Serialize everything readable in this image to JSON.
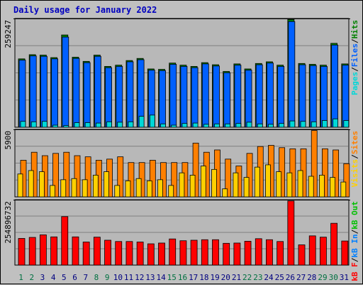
{
  "page": {
    "title": "Daily usage for January 2022"
  },
  "colors": {
    "background": "#c0c0c0",
    "panel": "#b8b8b8",
    "grid": "#808080",
    "pages": "#00d8d8",
    "files": "#0060ff",
    "hits": "#008000",
    "visits": "#ffd000",
    "sites": "#ff8000",
    "kb_in": "#0080ff",
    "kb_out": "#00c000",
    "kb_f": "#ff0000",
    "title": "#0000c0",
    "day_weekday": "#000080",
    "day_weekend": "#007040"
  },
  "chart_data": [
    {
      "type": "bar",
      "name": "hits-files-pages",
      "y_axis_max_label": "259247",
      "ylim": [
        0,
        259247
      ],
      "legend": [
        {
          "key": "pages",
          "label": "Pages"
        },
        {
          "key": "files",
          "label": "Files"
        },
        {
          "key": "hits",
          "label": "Hits"
        }
      ],
      "separator": "/",
      "categories": [
        "1",
        "2",
        "3",
        "4",
        "5",
        "6",
        "7",
        "8",
        "9",
        "10",
        "11",
        "12",
        "13",
        "14",
        "15",
        "16",
        "17",
        "18",
        "19",
        "20",
        "21",
        "22",
        "23",
        "24",
        "25",
        "26",
        "27",
        "28",
        "29",
        "30",
        "31"
      ],
      "series": [
        {
          "name": "Hits",
          "values": [
            163000,
            173000,
            172000,
            166000,
            220000,
            167000,
            157000,
            172000,
            145000,
            148000,
            159000,
            164000,
            139000,
            138000,
            153000,
            148000,
            145000,
            154000,
            149000,
            133000,
            151000,
            139000,
            152000,
            156000,
            148000,
            257000,
            152000,
            150000,
            148000,
            200000,
            151000
          ]
        },
        {
          "name": "Files",
          "values": [
            160000,
            170000,
            169000,
            163000,
            215000,
            164000,
            154000,
            169000,
            142000,
            145000,
            156000,
            161000,
            136000,
            135000,
            150000,
            145000,
            142000,
            151000,
            146000,
            130000,
            148000,
            136000,
            149000,
            153000,
            145000,
            252000,
            149000,
            147000,
            145000,
            196000,
            148000
          ]
        },
        {
          "name": "Pages",
          "values": [
            14000,
            13000,
            14000,
            5000,
            4000,
            11000,
            11000,
            10000,
            13000,
            12000,
            13000,
            26000,
            29000,
            8000,
            5000,
            9000,
            10000,
            7000,
            8000,
            8000,
            9000,
            12000,
            8000,
            7000,
            9000,
            15000,
            14000,
            13000,
            16000,
            20000,
            16000
          ]
        }
      ]
    },
    {
      "type": "bar",
      "name": "sites-visits",
      "y_axis_max_label": "5900",
      "ylim": [
        0,
        5900
      ],
      "legend": [
        {
          "key": "visits",
          "label": "Visits"
        },
        {
          "key": "sites",
          "label": "Sites"
        }
      ],
      "separator": "/",
      "series": [
        {
          "name": "Sites",
          "values": [
            3200,
            3900,
            3600,
            3800,
            3900,
            3600,
            3500,
            3200,
            3300,
            3500,
            3000,
            3000,
            3200,
            3000,
            3000,
            3000,
            4700,
            3900,
            4100,
            3300,
            2700,
            3800,
            4400,
            4500,
            4300,
            4200,
            4200,
            5800,
            4200,
            4100,
            2900
          ]
        },
        {
          "name": "Visits",
          "values": [
            2000,
            2300,
            2200,
            1000,
            1500,
            1600,
            1500,
            1900,
            2200,
            1000,
            1400,
            1600,
            1400,
            1500,
            1000,
            2100,
            1900,
            2700,
            2400,
            700,
            2100,
            1700,
            2600,
            2800,
            2200,
            2100,
            2300,
            1800,
            1900,
            1700,
            1300
          ]
        }
      ]
    },
    {
      "type": "bar",
      "name": "kbf-kbin-kbout",
      "y_axis_max_label": "254896732",
      "ylim": [
        0,
        254896732
      ],
      "legend": [
        {
          "key": "kb_f",
          "label": "kB F"
        },
        {
          "key": "kb_in",
          "label": "kB In"
        },
        {
          "key": "kb_out",
          "label": "kB Out"
        }
      ],
      "separator": "/",
      "series": [
        {
          "name": "kB F",
          "values": [
            104000000,
            108000000,
            118000000,
            110000000,
            189000000,
            110000000,
            90000000,
            109000000,
            97000000,
            92000000,
            92000000,
            90000000,
            83000000,
            86000000,
            102000000,
            95000000,
            97000000,
            99000000,
            99000000,
            85000000,
            86000000,
            93000000,
            103000000,
            99000000,
            92000000,
            250000000,
            79000000,
            114000000,
            109000000,
            163000000,
            94000000
          ]
        }
      ]
    }
  ]
}
